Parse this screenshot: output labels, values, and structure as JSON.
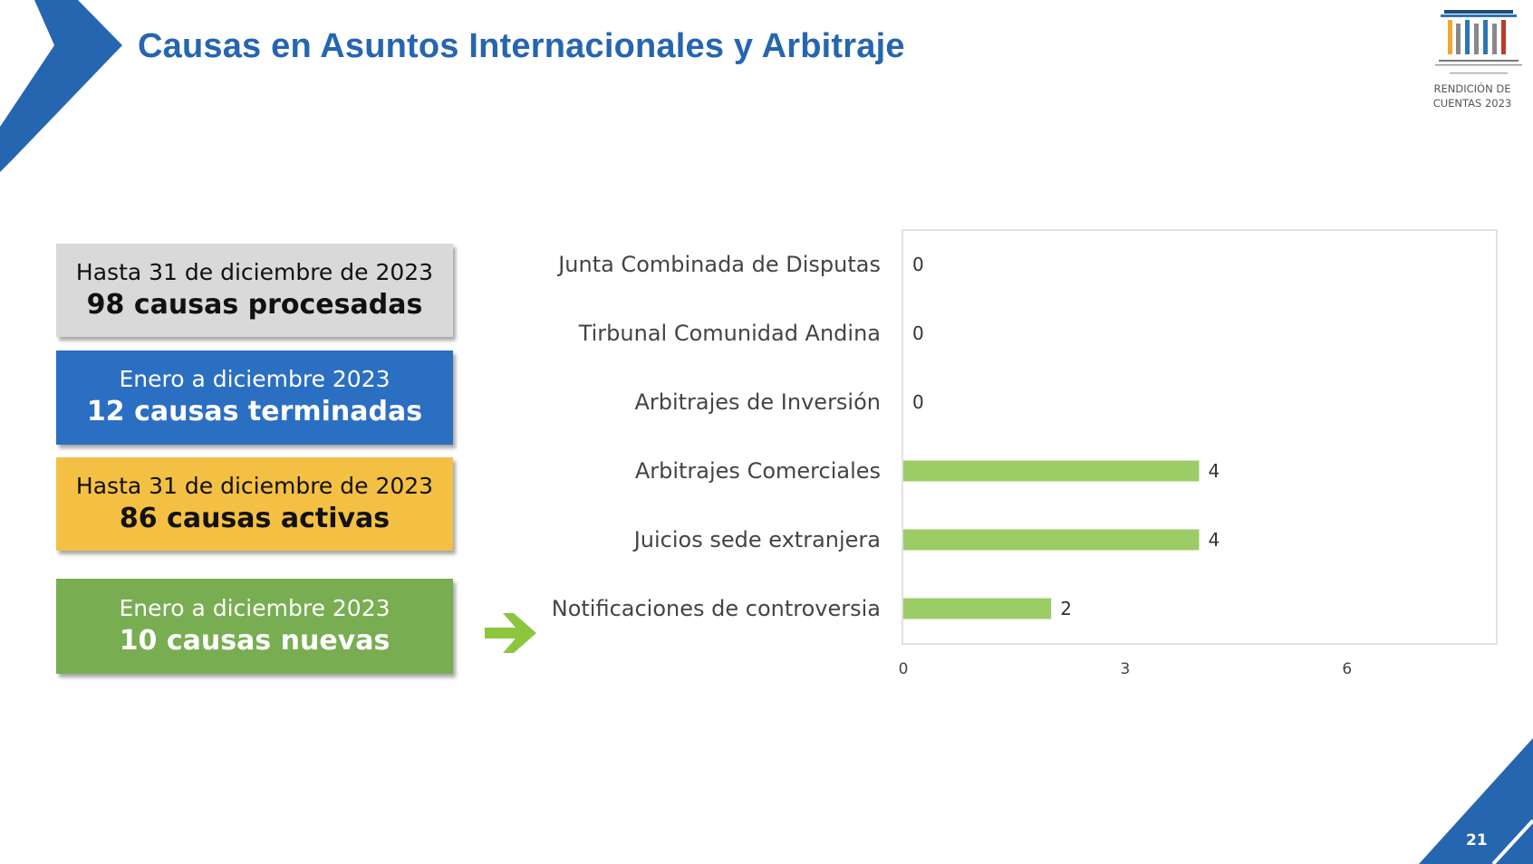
{
  "slide": {
    "title": "Causas en Asuntos Internacionales y Arbitraje",
    "page_number": "21",
    "logo": {
      "caption_line1": "RENDICIÓN DE",
      "caption_line2": "CUENTAS 2023"
    },
    "colors": {
      "accent_blue": "#2665b0",
      "box_gray": "#d9d9d9",
      "box_blue": "#2b6fc2",
      "box_yellow": "#f4c043",
      "box_green": "#78ad52",
      "bar_green": "#9ccc65"
    }
  },
  "summary_boxes": [
    {
      "line1": "Hasta 31 de diciembre de 2023",
      "line2": "98 causas procesadas"
    },
    {
      "line1": "Enero a diciembre 2023",
      "line2": "12 causas terminadas"
    },
    {
      "line1": "Hasta 31 de diciembre de 2023",
      "line2": "86 causas activas"
    },
    {
      "line1": "Enero a diciembre 2023",
      "line2": "10 causas nuevas"
    }
  ],
  "arrow_icon": "arrow-right-icon",
  "chart_data": {
    "type": "bar",
    "orientation": "horizontal",
    "categories": [
      "Junta Combinada de Disputas",
      "Tirbunal Comunidad Andina",
      "Arbitrajes de Inversión",
      "Arbitrajes Comerciales",
      "Juicios sede extranjera",
      "Notificaciones de controversia"
    ],
    "values": [
      0,
      0,
      0,
      4,
      4,
      2
    ],
    "xlim": [
      0,
      8
    ],
    "xticks": [
      "0",
      "3",
      "6"
    ],
    "xtick_values": [
      0,
      3,
      6
    ],
    "grid": false,
    "legend": "none",
    "data_labels": true
  }
}
